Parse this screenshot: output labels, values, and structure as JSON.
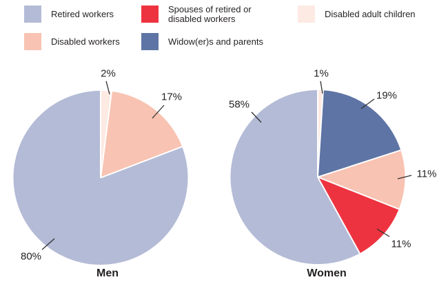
{
  "colors": {
    "retired_workers": "#b4bbd6",
    "disabled_workers": "#f8c3b2",
    "spouses": "#ee3340",
    "widowers_parents": "#5e74a4",
    "disabled_adult_children": "#fdeae3",
    "text": "#231f20",
    "leader_line": "#2f2f2f",
    "slice_separator": "#ffffff",
    "background": "#ffffff"
  },
  "legend": {
    "items": [
      {
        "label": "Retired workers",
        "color": "#b4bbd6"
      },
      {
        "label": "Disabled workers",
        "color": "#f8c3b2"
      },
      {
        "label": "Spouses of retired or disabled workers",
        "color": "#ee3340"
      },
      {
        "label": "Widow(er)s and parents",
        "color": "#5e74a4"
      },
      {
        "label": "Disabled adult children",
        "color": "#fdeae3"
      }
    ]
  },
  "chart_data": [
    {
      "type": "pie",
      "title": "Men",
      "categories": [
        "Disabled adult children",
        "Disabled workers",
        "Retired workers"
      ],
      "values": [
        2,
        17,
        80
      ],
      "labels": [
        "2%",
        "17%",
        "80%"
      ],
      "colors": [
        "#fdeae3",
        "#f8c3b2",
        "#b4bbd6"
      ],
      "start_angle_deg": 0,
      "direction": "clockwise",
      "legend_position": "top"
    },
    {
      "type": "pie",
      "title": "Women",
      "categories": [
        "Disabled adult children",
        "Widow(er)s and parents",
        "Disabled workers",
        "Spouses of retired or disabled workers",
        "Retired workers"
      ],
      "values": [
        1,
        19,
        11,
        11,
        58
      ],
      "labels": [
        "1%",
        "19%",
        "11%",
        "11%",
        "58%"
      ],
      "colors": [
        "#fdeae3",
        "#5e74a4",
        "#f8c3b2",
        "#ee3340",
        "#b4bbd6"
      ],
      "start_angle_deg": 0,
      "direction": "clockwise",
      "legend_position": "top"
    }
  ]
}
